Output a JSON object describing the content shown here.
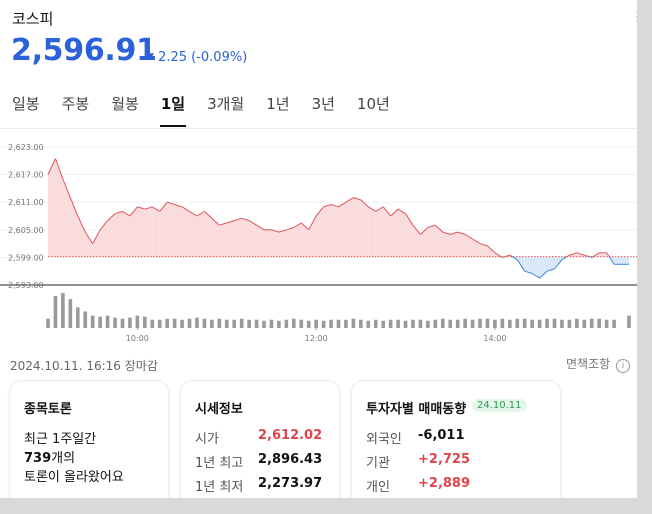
{
  "header": {
    "title": "코스피",
    "price": "2,596.91",
    "change": "2.25 (-0.09%)"
  },
  "tabs": [
    "일봉",
    "주봉",
    "월봉",
    "1일",
    "3개월",
    "1년",
    "3년",
    "10년"
  ],
  "active_tab": "1일",
  "timestamp": "2024.10.11. 16:16 장마감",
  "disclaimer": "면책조항",
  "chart_data": {
    "type": "area",
    "baseline": 2599.16,
    "ylim": [
      2593,
      2623
    ],
    "y_ticks": [
      "2,623.00",
      "2,617.00",
      "2,611.00",
      "2,605.00",
      "2,599.00",
      "2,593.00"
    ],
    "x_ticks": [
      "10:00",
      "12:00",
      "14:00"
    ],
    "x": [
      "09:00",
      "09:05",
      "09:10",
      "09:15",
      "09:20",
      "09:25",
      "09:30",
      "09:35",
      "09:40",
      "09:45",
      "09:50",
      "09:55",
      "10:00",
      "10:05",
      "10:10",
      "10:15",
      "10:20",
      "10:25",
      "10:30",
      "10:35",
      "10:40",
      "10:45",
      "10:50",
      "10:55",
      "11:00",
      "11:05",
      "11:10",
      "11:15",
      "11:20",
      "11:25",
      "11:30",
      "11:35",
      "11:40",
      "11:45",
      "11:50",
      "11:55",
      "12:00",
      "12:05",
      "12:10",
      "12:15",
      "12:20",
      "12:25",
      "12:30",
      "12:35",
      "12:40",
      "12:45",
      "12:50",
      "12:55",
      "13:00",
      "13:05",
      "13:10",
      "13:15",
      "13:20",
      "13:25",
      "13:30",
      "13:35",
      "13:40",
      "13:45",
      "13:50",
      "13:55",
      "14:00",
      "14:05",
      "14:10",
      "14:15",
      "14:20",
      "14:25",
      "14:30",
      "14:35",
      "14:40",
      "14:45",
      "14:50",
      "14:55",
      "15:00",
      "15:05",
      "15:10",
      "15:15",
      "15:20",
      "15:30"
    ],
    "values": [
      2617.0,
      2620.5,
      2616.0,
      2612.0,
      2608.0,
      2604.5,
      2602.0,
      2605.0,
      2607.0,
      2608.5,
      2609.0,
      2608.0,
      2610.0,
      2609.5,
      2610.0,
      2609.0,
      2611.0,
      2610.5,
      2610.0,
      2609.0,
      2608.0,
      2609.0,
      2607.5,
      2606.0,
      2606.5,
      2607.0,
      2607.5,
      2607.0,
      2606.0,
      2605.0,
      2605.0,
      2604.5,
      2605.0,
      2605.5,
      2606.5,
      2605.0,
      2608.0,
      2610.0,
      2610.5,
      2610.0,
      2611.0,
      2612.0,
      2611.5,
      2610.0,
      2609.0,
      2610.0,
      2608.0,
      2609.5,
      2608.5,
      2606.0,
      2604.0,
      2605.5,
      2606.0,
      2604.5,
      2604.0,
      2604.5,
      2604.0,
      2603.0,
      2602.0,
      2601.5,
      2600.0,
      2599.0,
      2599.5,
      2598.5,
      2596.0,
      2595.5,
      2594.5,
      2596.0,
      2596.5,
      2598.5,
      2599.5,
      2600.0,
      2599.5,
      2599.0,
      2600.0,
      2600.0,
      2597.5,
      2597.5
    ],
    "volume": [
      9,
      31,
      34,
      28,
      20,
      16,
      12,
      11,
      12,
      10,
      9,
      10,
      12,
      11,
      8,
      8,
      9,
      9,
      8,
      9,
      10,
      9,
      8,
      9,
      8,
      8,
      9,
      8,
      8,
      7,
      8,
      7,
      8,
      9,
      8,
      7,
      8,
      7,
      8,
      8,
      8,
      9,
      8,
      7,
      8,
      7,
      8,
      8,
      7,
      8,
      8,
      7,
      8,
      9,
      8,
      8,
      9,
      8,
      9,
      9,
      8,
      9,
      8,
      9,
      9,
      8,
      8,
      9,
      9,
      8,
      8,
      9,
      8,
      9,
      9,
      8,
      8,
      12
    ],
    "colors": {
      "up_line": "#e0555a",
      "up_fill": "#fadcdc",
      "down_line": "#3d87d6",
      "down_fill": "#d8e8f8",
      "volume": "#9a9a9a",
      "baseline": "#e05a5a"
    }
  },
  "cards": {
    "discussion": {
      "title": "종목토론",
      "line1": "최근 1주일간",
      "count": "739",
      "count_suffix": "개의",
      "line3": "토론이 올라왔어요"
    },
    "market": {
      "title": "시세정보",
      "open_label": "시가",
      "open_value": "2,612.02",
      "high_label": "1년 최고",
      "high_value": "2,896.43",
      "low_label": "1년 최저",
      "low_value": "2,273.97"
    },
    "investors": {
      "title": "투자자별 매매동향",
      "date": "24.10.11",
      "foreign_label": "외국인",
      "foreign_value": "-6,011",
      "inst_label": "기관",
      "inst_value": "+2,725",
      "indiv_label": "개인",
      "indiv_value": "+2,889"
    }
  }
}
